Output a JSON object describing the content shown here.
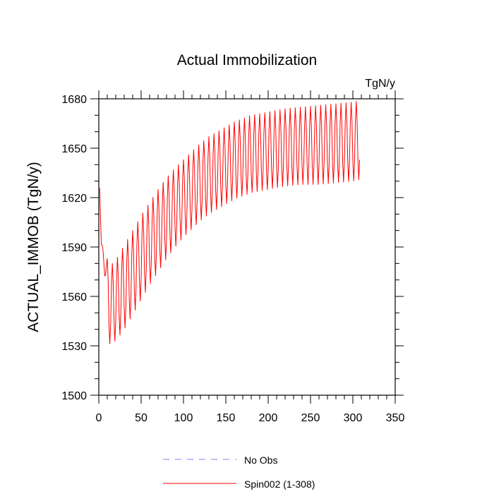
{
  "chart_data": {
    "type": "line",
    "title": "Actual Immobilization",
    "units": "TgN/y",
    "xlabel": "",
    "ylabel": "ACTUAL_IMMOB  (TgN/y)",
    "xlim": [
      0,
      350
    ],
    "ylim": [
      1500,
      1680
    ],
    "xticks": [
      0,
      50,
      100,
      150,
      200,
      250,
      300,
      350
    ],
    "yticks": [
      1500,
      1530,
      1560,
      1590,
      1620,
      1650,
      1680
    ],
    "xminor_step": 10,
    "yminor_step": 10,
    "series": [
      {
        "name": "No Obs",
        "color": "#8080ff",
        "dash": "dashed",
        "x": [],
        "values": []
      },
      {
        "name": "Spin002 (1-308)",
        "color": "#ff0000",
        "dash": "solid",
        "x_range": [
          1,
          308
        ],
        "period": 6,
        "envelope_x": [
          1,
          3,
          8,
          12,
          20,
          30,
          40,
          50,
          60,
          70,
          80,
          90,
          100,
          110,
          120,
          130,
          140,
          150,
          160,
          170,
          180,
          190,
          200,
          220,
          240,
          260,
          280,
          300,
          308
        ],
        "envelope_max": [
          1626,
          1592,
          1588,
          1578,
          1582,
          1591,
          1600,
          1609,
          1617,
          1625,
          1632,
          1638,
          1643,
          1648,
          1653,
          1657,
          1660,
          1663,
          1666,
          1668,
          1670,
          1671,
          1672,
          1674,
          1675,
          1676,
          1677,
          1678,
          1679
        ],
        "envelope_min": [
          1626,
          1590,
          1568,
          1531,
          1533,
          1540,
          1549,
          1558,
          1567,
          1575,
          1583,
          1590,
          1596,
          1601,
          1606,
          1610,
          1613,
          1616,
          1619,
          1621,
          1623,
          1624,
          1625,
          1627,
          1628,
          1628,
          1629,
          1630,
          1631
        ]
      }
    ],
    "legend": {
      "position": "bottom",
      "entries": [
        "No Obs",
        "Spin002 (1-308)"
      ]
    }
  }
}
